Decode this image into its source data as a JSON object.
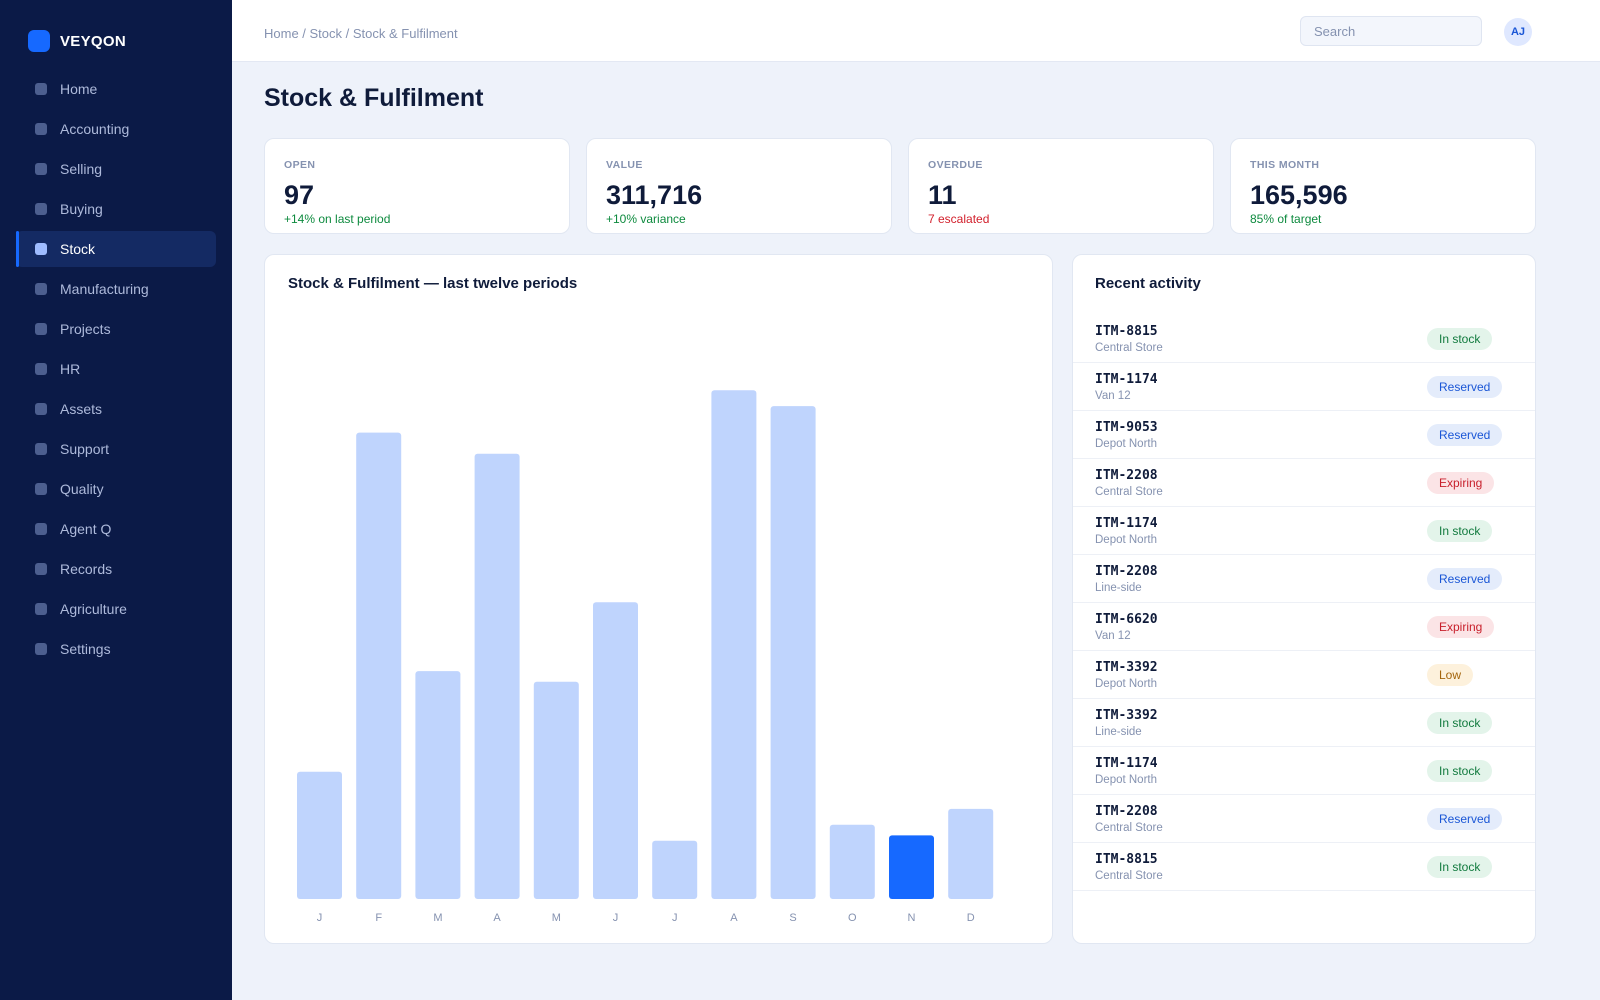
{
  "app": {
    "brand": "VEYQON"
  },
  "sidebar": {
    "items": [
      {
        "label": "Home",
        "active": false
      },
      {
        "label": "Accounting",
        "active": false
      },
      {
        "label": "Selling",
        "active": false
      },
      {
        "label": "Buying",
        "active": false
      },
      {
        "label": "Stock",
        "active": true
      },
      {
        "label": "Manufacturing",
        "active": false
      },
      {
        "label": "Projects",
        "active": false
      },
      {
        "label": "HR",
        "active": false
      },
      {
        "label": "Assets",
        "active": false
      },
      {
        "label": "Support",
        "active": false
      },
      {
        "label": "Quality",
        "active": false
      },
      {
        "label": "Agent Q",
        "active": false
      },
      {
        "label": "Records",
        "active": false
      },
      {
        "label": "Agriculture",
        "active": false
      },
      {
        "label": "Settings",
        "active": false
      }
    ]
  },
  "header": {
    "breadcrumb": "Home / Stock / Stock & Fulfilment",
    "search_placeholder": "Search",
    "avatar_initials": "AJ"
  },
  "page": {
    "title": "Stock & Fulfilment"
  },
  "kpis": [
    {
      "label": "OPEN",
      "value": "97",
      "sub": "+14% on last period",
      "tone": "pos"
    },
    {
      "label": "VALUE",
      "value": "311,716",
      "sub": "+10% variance",
      "tone": "pos"
    },
    {
      "label": "OVERDUE",
      "value": "11",
      "sub": "7 escalated",
      "tone": "neg"
    },
    {
      "label": "THIS MONTH",
      "value": "165,596",
      "sub": "85% of target",
      "tone": "pos"
    }
  ],
  "chart": {
    "title": "Stock & Fulfilment — last twelve periods"
  },
  "chart_data": {
    "type": "bar",
    "title": "Stock & Fulfilment — last twelve periods",
    "categories": [
      "J",
      "F",
      "M",
      "A",
      "M",
      "J",
      "J",
      "A",
      "S",
      "O",
      "N",
      "D"
    ],
    "values": [
      24,
      88,
      43,
      84,
      41,
      56,
      11,
      96,
      93,
      14,
      12,
      17
    ],
    "highlight_index": 10,
    "ylim": [
      0,
      100
    ],
    "grid": false,
    "colors": {
      "bar": "#bfd4fd",
      "highlight": "#1669ff"
    }
  },
  "activity": {
    "title": "Recent activity",
    "rows": [
      {
        "code": "ITM-8815",
        "location": "Central Store",
        "status": "In stock",
        "kind": "instock"
      },
      {
        "code": "ITM-1174",
        "location": "Van 12",
        "status": "Reserved",
        "kind": "reserved"
      },
      {
        "code": "ITM-9053",
        "location": "Depot North",
        "status": "Reserved",
        "kind": "reserved"
      },
      {
        "code": "ITM-2208",
        "location": "Central Store",
        "status": "Expiring",
        "kind": "expiring"
      },
      {
        "code": "ITM-1174",
        "location": "Depot North",
        "status": "In stock",
        "kind": "instock"
      },
      {
        "code": "ITM-2208",
        "location": "Line-side",
        "status": "Reserved",
        "kind": "reserved"
      },
      {
        "code": "ITM-6620",
        "location": "Van 12",
        "status": "Expiring",
        "kind": "expiring"
      },
      {
        "code": "ITM-3392",
        "location": "Depot North",
        "status": "Low",
        "kind": "low"
      },
      {
        "code": "ITM-3392",
        "location": "Line-side",
        "status": "In stock",
        "kind": "instock"
      },
      {
        "code": "ITM-1174",
        "location": "Depot North",
        "status": "In stock",
        "kind": "instock"
      },
      {
        "code": "ITM-2208",
        "location": "Central Store",
        "status": "Reserved",
        "kind": "reserved"
      },
      {
        "code": "ITM-8815",
        "location": "Central Store",
        "status": "In stock",
        "kind": "instock"
      }
    ]
  }
}
